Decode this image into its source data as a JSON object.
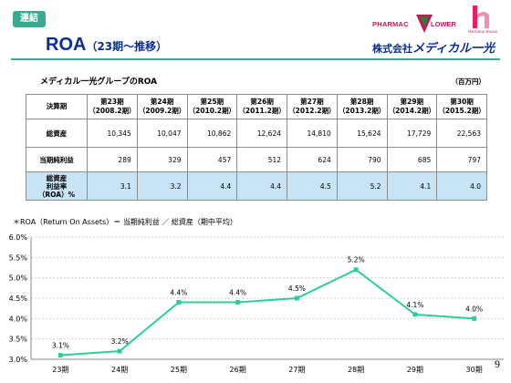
{
  "header": {
    "badge": "連結",
    "title_main": "ROA",
    "title_sub": "（23期～推移）",
    "corp_prefix": "株式会社",
    "corp_name": "メディカル一光",
    "logo_text_left": "PHARMAC",
    "logo_text_right": "LOWER",
    "logo2_text": "Harmony House"
  },
  "table": {
    "title": "メディカル一光グループのROA",
    "unit": "（百万円）",
    "header_label": "決算期",
    "periods": [
      {
        "name": "第23期",
        "range": "（2008.2期）"
      },
      {
        "name": "第24期",
        "range": "（2009.2期）"
      },
      {
        "name": "第25期",
        "range": "（2010.2期）"
      },
      {
        "name": "第26期",
        "range": "（2011.2期）"
      },
      {
        "name": "第27期",
        "range": "（2012.2期）"
      },
      {
        "name": "第28期",
        "range": "（2013.2期）"
      },
      {
        "name": "第29期",
        "range": "（2014.2期）"
      },
      {
        "name": "第30期",
        "range": "（2015.2期）"
      }
    ],
    "rows": [
      {
        "label": "総資産",
        "values": [
          "10,345",
          "10,047",
          "10,862",
          "12,624",
          "14,810",
          "15,624",
          "17,729",
          "22,563"
        ]
      },
      {
        "label": "当期純利益",
        "values": [
          "289",
          "329",
          "457",
          "512",
          "624",
          "790",
          "685",
          "797"
        ]
      },
      {
        "label_lines": [
          "総資産",
          "利益率",
          "（ROA）%"
        ],
        "values": [
          "3.1",
          "3.2",
          "4.4",
          "4.4",
          "4.5",
          "5.2",
          "4.1",
          "4.0"
        ]
      }
    ]
  },
  "formula": "＊ROA（Return On Assets）＝ 当期純利益 ／ 総資産（期中平均）",
  "chart_data": {
    "type": "line",
    "categories": [
      "23期",
      "24期",
      "25期",
      "26期",
      "27期",
      "28期",
      "29期",
      "30期"
    ],
    "values": [
      3.1,
      3.2,
      4.4,
      4.4,
      4.5,
      5.2,
      4.1,
      4.0
    ],
    "data_labels": [
      "3.1%",
      "3.2%",
      "4.4%",
      "4.4%",
      "4.5%",
      "5.2%",
      "4.1%",
      "4.0%"
    ],
    "yticks": [
      "3.0%",
      "3.5%",
      "4.0%",
      "4.5%",
      "5.0%",
      "5.5%",
      "6.0%"
    ],
    "ylim": [
      3.0,
      6.0
    ],
    "grid": true,
    "color": "#2ecc9e",
    "title": "",
    "xlabel": "",
    "ylabel": ""
  },
  "page_number": "9"
}
